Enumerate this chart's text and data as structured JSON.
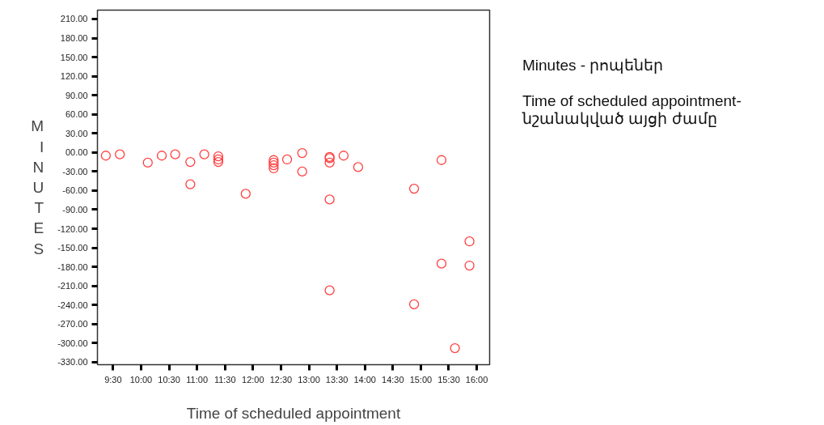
{
  "chart_data": {
    "type": "scatter",
    "xlabel": "Time of scheduled appointment",
    "ylabel": "MINUTES",
    "annotations": [
      "Minutes - րոպեներ",
      "Time of scheduled appointment- նշանակված այցի ժամը"
    ],
    "series": [
      {
        "color": "#ff4040",
        "x": [
          9.37,
          9.62,
          10.12,
          10.37,
          10.61,
          10.88,
          10.88,
          11.13,
          11.38,
          11.38,
          11.38,
          11.87,
          12.37,
          12.37,
          12.37,
          12.37,
          12.61,
          12.88,
          12.88,
          13.37,
          13.37,
          13.37,
          13.37,
          13.37,
          13.62,
          13.88,
          14.88,
          14.88,
          15.37,
          15.37,
          15.61,
          15.87,
          15.87
        ],
        "values": [
          -5,
          -3,
          -16,
          -5,
          -3,
          -15,
          -50,
          -3,
          -6,
          -11,
          -15,
          -65,
          -12,
          -16,
          -20,
          -25,
          -11,
          -1,
          -30,
          -7,
          -9,
          -16,
          -74,
          -217,
          -5,
          -23,
          -57,
          -239,
          -12,
          -175,
          -308,
          -140,
          -178
        ]
      }
    ],
    "marker": "circle",
    "grid": false,
    "xlim": [
      9.22,
      16.23
    ],
    "ylim": [
      -334,
      224
    ],
    "xticks": [
      {
        "value": 9.5,
        "label": "9:30"
      },
      {
        "value": 10,
        "label": "10:00"
      },
      {
        "value": 10.5,
        "label": "10:30"
      },
      {
        "value": 11,
        "label": "11:00"
      },
      {
        "value": 11.5,
        "label": "11:30"
      },
      {
        "value": 12,
        "label": "12:00"
      },
      {
        "value": 12.5,
        "label": "12:30"
      },
      {
        "value": 13,
        "label": "13:00"
      },
      {
        "value": 13.5,
        "label": "13:30"
      },
      {
        "value": 14,
        "label": "14:00"
      },
      {
        "value": 14.5,
        "label": "14:30"
      },
      {
        "value": 15,
        "label": "15:00"
      },
      {
        "value": 15.5,
        "label": "15:30"
      },
      {
        "value": 16,
        "label": "16:00"
      }
    ],
    "yticks": [
      {
        "value": 210,
        "label": "210.00"
      },
      {
        "value": 180,
        "label": "180.00"
      },
      {
        "value": 150,
        "label": "150.00"
      },
      {
        "value": 120,
        "label": "120.00"
      },
      {
        "value": 90,
        "label": "90.00"
      },
      {
        "value": 60,
        "label": "60.00"
      },
      {
        "value": 30,
        "label": "30.00"
      },
      {
        "value": 0,
        "label": "00.00"
      },
      {
        "value": -30,
        "label": "-30.00"
      },
      {
        "value": -60,
        "label": "-60.00"
      },
      {
        "value": -90,
        "label": "-90.00"
      },
      {
        "value": -120,
        "label": "-120.00"
      },
      {
        "value": -150,
        "label": "-150.00"
      },
      {
        "value": -180,
        "label": "-180.00"
      },
      {
        "value": -210,
        "label": "-210.00"
      },
      {
        "value": -240,
        "label": "-240.00"
      },
      {
        "value": -270,
        "label": "-270.00"
      },
      {
        "value": -300,
        "label": "-300.00"
      },
      {
        "value": -330,
        "label": "-330.00"
      }
    ]
  }
}
